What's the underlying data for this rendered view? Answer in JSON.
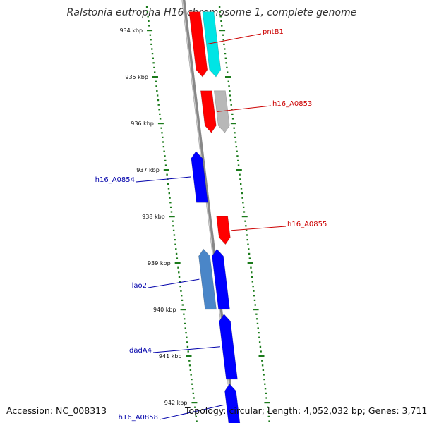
{
  "title": "Ralstonia eutropha H16 chromosome 1, complete genome",
  "accession_label": "Accession: NC_008313",
  "topology_label": "Topology: circular; Length: 4,052,032 bp; Genes: 3,711",
  "colors": {
    "forward_gene": "#ff0000",
    "reverse_gene": "#0000ff",
    "rrna": "#00e5e5",
    "gray_gene": "#b8b8b8",
    "steelblue_gene": "#4a86c8",
    "backbone": "#888888",
    "ticks": "#1a7a1a"
  },
  "ticks": [
    {
      "kbp": 934,
      "label": "934 kbp"
    },
    {
      "kbp": 935,
      "label": "935 kbp"
    },
    {
      "kbp": 936,
      "label": "936 kbp"
    },
    {
      "kbp": 937,
      "label": "937 kbp"
    },
    {
      "kbp": 938,
      "label": "938 kbp"
    },
    {
      "kbp": 939,
      "label": "939 kbp"
    },
    {
      "kbp": 940,
      "label": "940 kbp"
    },
    {
      "kbp": 941,
      "label": "941 kbp"
    },
    {
      "kbp": 942,
      "label": "942 kbp"
    }
  ],
  "genes": [
    {
      "name": "pntB1",
      "label": "pntB1",
      "strand": "+",
      "color": "#ff0000",
      "start_kbp": 933.6,
      "end_kbp": 935.0
    },
    {
      "name": "pntB1-cyan",
      "label": "",
      "strand": "+",
      "color": "#00e5e5",
      "start_kbp": 933.6,
      "end_kbp": 935.0
    },
    {
      "name": "h16_A0853",
      "label": "h16_A0853",
      "strand": "+",
      "color": "#ff0000",
      "start_kbp": 935.3,
      "end_kbp": 936.2
    },
    {
      "name": "h16_A0853-gray",
      "label": "",
      "strand": "+",
      "color": "#b8b8b8",
      "start_kbp": 935.3,
      "end_kbp": 936.2
    },
    {
      "name": "h16_A0854",
      "label": "h16_A0854",
      "strand": "-",
      "color": "#0000ff",
      "start_kbp": 936.6,
      "end_kbp": 937.7
    },
    {
      "name": "h16_A0855",
      "label": "h16_A0855",
      "strand": "+",
      "color": "#ff0000",
      "start_kbp": 938.0,
      "end_kbp": 938.6
    },
    {
      "name": "lao2",
      "label": "lao2",
      "strand": "-",
      "color": "#4a86c8",
      "start_kbp": 938.7,
      "end_kbp": 940.0
    },
    {
      "name": "lao2-blue",
      "label": "",
      "strand": "-",
      "color": "#0000ff",
      "start_kbp": 938.7,
      "end_kbp": 940.0
    },
    {
      "name": "dadA4",
      "label": "dadA4",
      "strand": "-",
      "color": "#0000ff",
      "start_kbp": 940.1,
      "end_kbp": 941.5
    },
    {
      "name": "h16_A0858",
      "label": "h16_A0858",
      "strand": "-",
      "color": "#0000ff",
      "start_kbp": 941.6,
      "end_kbp": 942.5
    }
  ]
}
